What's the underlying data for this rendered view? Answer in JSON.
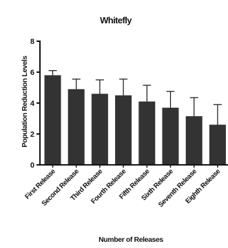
{
  "chart_data": {
    "type": "bar",
    "title": "Whitefly",
    "xlabel": "Number of Releases",
    "ylabel": "Population Reduction Levels",
    "categories": [
      "First Release",
      "Second Release",
      "Third Release",
      "Fourth Release",
      "Fifth Release",
      "Sixth Release",
      "Seventh Release",
      "Eighth Release"
    ],
    "values": [
      5.8,
      4.9,
      4.6,
      4.5,
      4.1,
      3.7,
      3.15,
      2.6
    ],
    "errors": [
      0.3,
      0.65,
      0.9,
      1.05,
      1.05,
      1.05,
      1.2,
      1.3
    ],
    "ylim": [
      0,
      8
    ],
    "yticks": [
      0,
      2,
      4,
      6,
      8
    ],
    "bar_color": "#333333",
    "grid": false,
    "legend": "none"
  }
}
